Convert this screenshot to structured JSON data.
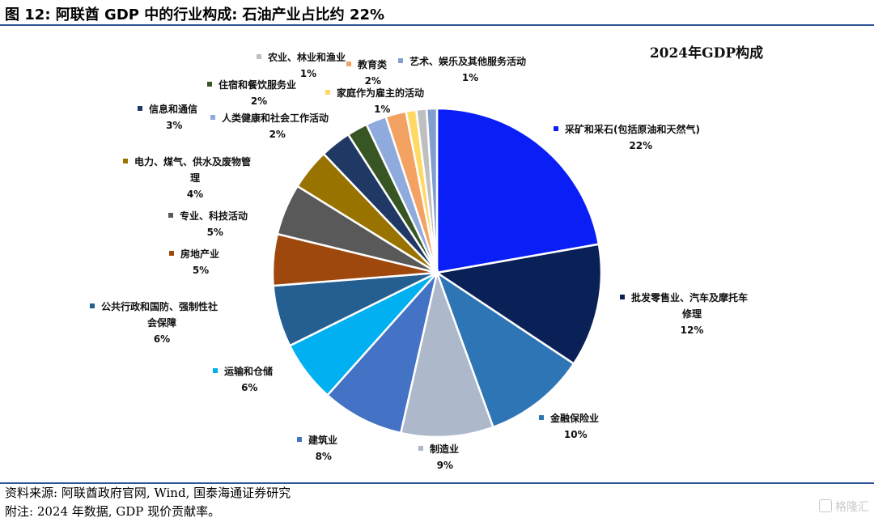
{
  "figure": {
    "title": "图 12:  阿联酋 GDP 中的行业构成:  石油产业占比约 22%",
    "source": "资料来源:  阿联酋政府官网, Wind, 国泰海通证券研究",
    "note": "附注:  2024 年数据, GDP 现价贡献率。",
    "watermark": "格隆汇"
  },
  "chart_data": {
    "type": "pie",
    "title": "2024年GDP构成",
    "unit": "%",
    "start_angle": "12 o'clock",
    "direction": "clockwise",
    "slices": [
      {
        "name": "采矿和采石(包括原油和天然气)",
        "value": 22,
        "color": "#0a1ff5",
        "label_lines": [
          "采矿和采石(包括原油和天然气)"
        ]
      },
      {
        "name": "批发零售业、汽车及摩托车修理",
        "value": 12,
        "color": "#0a2157",
        "label_lines": [
          "批发零售业、汽车及摩托车",
          "修理"
        ]
      },
      {
        "name": "金融保险业",
        "value": 10,
        "color": "#2e75b6",
        "label_lines": [
          "金融保险业"
        ]
      },
      {
        "name": "制造业",
        "value": 9,
        "color": "#adb9ca",
        "label_lines": [
          "制造业"
        ]
      },
      {
        "name": "建筑业",
        "value": 8,
        "color": "#4472c4",
        "label_lines": [
          "建筑业"
        ]
      },
      {
        "name": "运输和仓储",
        "value": 6,
        "color": "#00b0f0",
        "label_lines": [
          "运输和仓储"
        ]
      },
      {
        "name": "公共行政和国防、强制性社会保障",
        "value": 6,
        "color": "#255e91",
        "label_lines": [
          "公共行政和国防、强制性社",
          "会保障"
        ]
      },
      {
        "name": "房地产业",
        "value": 5,
        "color": "#9e480e",
        "label_lines": [
          "房地产业"
        ]
      },
      {
        "name": "专业、科技活动",
        "value": 5,
        "color": "#595959",
        "label_lines": [
          "专业、科技活动"
        ]
      },
      {
        "name": "电力、煤气、供水及废物管理",
        "value": 4,
        "color": "#997300",
        "label_lines": [
          "电力、煤气、供水及废物管",
          "理"
        ]
      },
      {
        "name": "信息和通信",
        "value": 3,
        "color": "#203864",
        "label_lines": [
          "信息和通信"
        ]
      },
      {
        "name": "住宿和餐饮服务业",
        "value": 2,
        "color": "#375623",
        "label_lines": [
          "住宿和餐饮服务业"
        ]
      },
      {
        "name": "人类健康和社会工作活动",
        "value": 2,
        "color": "#8faadc",
        "label_lines": [
          "人类健康和社会工作活动"
        ]
      },
      {
        "name": "教育类",
        "value": 2,
        "color": "#f4a261",
        "label_lines": [
          "教育类"
        ]
      },
      {
        "name": "家庭作为雇主的活动",
        "value": 1,
        "color": "#ffd966",
        "label_lines": [
          "家庭作为雇主的活动"
        ]
      },
      {
        "name": "农业、林业和渔业",
        "value": 1,
        "color": "#bfbfbf",
        "label_lines": [
          "农业、林业和渔业"
        ]
      },
      {
        "name": "艺术、娱乐及其他服务活动",
        "value": 1,
        "color": "#7f9fce",
        "label_lines": [
          "艺术、娱乐及其他服务活动"
        ]
      }
    ]
  }
}
